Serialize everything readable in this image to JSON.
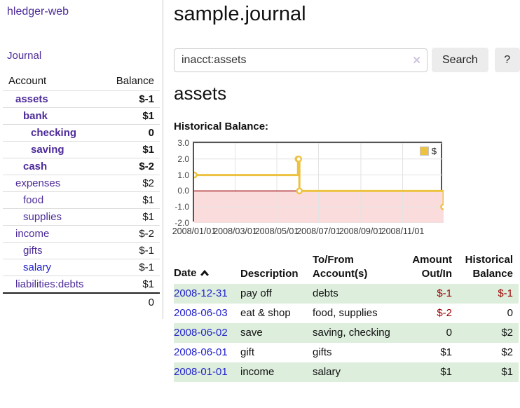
{
  "colors": {
    "link_purple": "#4d2b99",
    "link_blue": "#2222cc",
    "negative_strong": "#990000",
    "negative_muted": "#b0606a",
    "row_stripe_green": "#ddeedd",
    "chart_line_gold": "#edc240",
    "chart_negative_fill": "#fbdcdc",
    "chart_zero_line": "#990000"
  },
  "app": {
    "brand": "hledger-web"
  },
  "sidebar": {
    "nav": [
      {
        "label": "Journal"
      }
    ],
    "accounts_table": {
      "headers": {
        "account": "Account",
        "balance": "Balance"
      },
      "rows": [
        {
          "name": "assets",
          "balance": "$-1",
          "level": 1,
          "bold": true,
          "balance_class": "neg"
        },
        {
          "name": "bank",
          "balance": "$1",
          "level": 2,
          "bold": true,
          "balance_class": ""
        },
        {
          "name": "checking",
          "balance": "0",
          "level": 3,
          "bold": true,
          "balance_class": ""
        },
        {
          "name": "saving",
          "balance": "$1",
          "level": 3,
          "bold": true,
          "balance_class": ""
        },
        {
          "name": "cash",
          "balance": "$-2",
          "level": 2,
          "bold": true,
          "balance_class": "neg"
        },
        {
          "name": "expenses",
          "balance": "$2",
          "level": 1,
          "bold": false,
          "balance_class": ""
        },
        {
          "name": "food",
          "balance": "$1",
          "level": 2,
          "bold": false,
          "balance_class": ""
        },
        {
          "name": "supplies",
          "balance": "$1",
          "level": 2,
          "bold": false,
          "balance_class": ""
        },
        {
          "name": "income",
          "balance": "$-2",
          "level": 1,
          "bold": false,
          "balance_class": "mneg"
        },
        {
          "name": "gifts",
          "balance": "$-1",
          "level": 2,
          "bold": false,
          "balance_class": "mneg"
        },
        {
          "name": "salary",
          "balance": "$-1",
          "level": 2,
          "bold": false,
          "balance_class": "mneg",
          "link_blue": true
        },
        {
          "name": "liabilities:debts",
          "balance": "$1",
          "level": 1,
          "bold": false,
          "balance_class": ""
        }
      ],
      "total": "0"
    }
  },
  "main": {
    "title": "sample.journal",
    "search": {
      "value": "inacct:assets",
      "clear_icon": "✕",
      "search_button": "Search",
      "help_button": "?"
    },
    "account_heading": "assets",
    "chart_label": "Historical Balance:",
    "chart_data": {
      "type": "line",
      "step": true,
      "legend": [
        {
          "label": "$",
          "color": "#edc240"
        }
      ],
      "x_range": [
        "2008-01-01",
        "2008-12-31"
      ],
      "ylim": [
        -2,
        3
      ],
      "y_ticks": [
        {
          "value": 3,
          "label": "3.0"
        },
        {
          "value": 2,
          "label": "2.0"
        },
        {
          "value": 1,
          "label": "1.0"
        },
        {
          "value": 0,
          "label": "0.0"
        },
        {
          "value": -1,
          "label": "-1.0"
        },
        {
          "value": -2,
          "label": "-2.0"
        }
      ],
      "x_ticks": [
        {
          "date": "2008-01-01",
          "label": "2008/01/01"
        },
        {
          "date": "2008-03-01",
          "label": "2008/03/01"
        },
        {
          "date": "2008-05-01",
          "label": "2008/05/01"
        },
        {
          "date": "2008-07-01",
          "label": "2008/07/01"
        },
        {
          "date": "2008-09-01",
          "label": "2008/09/01"
        },
        {
          "date": "2008-11-01",
          "label": "2008/11/01"
        }
      ],
      "series": [
        {
          "name": "$",
          "color": "#edc240",
          "points": [
            {
              "date": "2008-01-01",
              "value": 1
            },
            {
              "date": "2008-06-01",
              "value": 2
            },
            {
              "date": "2008-06-02",
              "value": 2
            },
            {
              "date": "2008-06-03",
              "value": 0
            },
            {
              "date": "2008-12-31",
              "value": -1
            }
          ]
        }
      ]
    },
    "transactions": {
      "headers": {
        "date": "Date",
        "description": "Description",
        "accounts": "To/From Account(s)",
        "amount": "Amount Out/In",
        "balance": "Historical Balance"
      },
      "rows": [
        {
          "date": "2008-12-31",
          "description": "pay off",
          "accounts": "debts",
          "amount": "$-1",
          "balance": "$-1",
          "amount_neg": true,
          "balance_neg": true
        },
        {
          "date": "2008-06-03",
          "description": "eat & shop",
          "accounts": "food, supplies",
          "amount": "$-2",
          "balance": "0",
          "amount_neg": true,
          "balance_neg": false
        },
        {
          "date": "2008-06-02",
          "description": "save",
          "accounts": "saving, checking",
          "amount": "0",
          "balance": "$2",
          "amount_neg": false,
          "balance_neg": false
        },
        {
          "date": "2008-06-01",
          "description": "gift",
          "accounts": "gifts",
          "amount": "$1",
          "balance": "$2",
          "amount_neg": false,
          "balance_neg": false
        },
        {
          "date": "2008-01-01",
          "description": "income",
          "accounts": "salary",
          "amount": "$1",
          "balance": "$1",
          "amount_neg": false,
          "balance_neg": false
        }
      ]
    }
  }
}
